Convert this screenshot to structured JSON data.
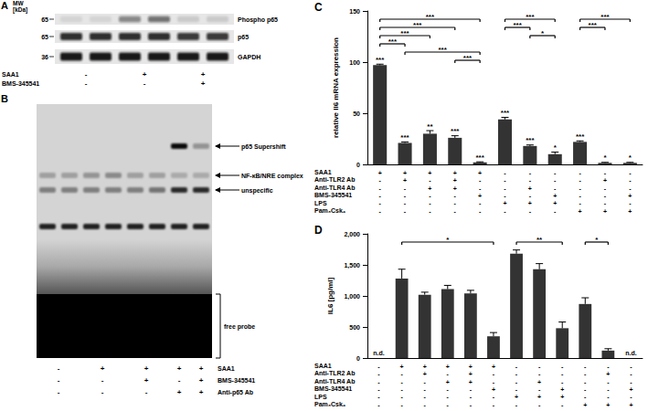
{
  "panels": {
    "A": {
      "letter": "A",
      "mw_title": [
        "MW",
        "[kDa]"
      ],
      "blots": [
        {
          "label": "Phospho p65",
          "mw": 65,
          "intensity": [
            0.08,
            0.08,
            0.45,
            0.55,
            0.12,
            0.12
          ]
        },
        {
          "label": "p65",
          "mw": 65,
          "intensity": [
            0.85,
            0.85,
            0.85,
            0.85,
            0.8,
            0.8
          ]
        },
        {
          "label": "GAPDH",
          "mw": 36,
          "intensity": [
            0.95,
            0.95,
            0.95,
            0.95,
            0.95,
            0.95
          ]
        }
      ],
      "treatments": [
        {
          "name": "SAA1",
          "groups": [
            "-",
            "+",
            "+"
          ]
        },
        {
          "name": "BMS-345541",
          "groups": [
            "-",
            "-",
            "+"
          ]
        }
      ]
    },
    "B": {
      "letter": "B",
      "bands": [
        {
          "label": "p65 Supershift",
          "intensity": [
            0,
            0,
            0,
            0,
            0,
            0,
            0.95,
            0.3
          ]
        },
        {
          "label": "NF-κB/NRE complex",
          "intensity": [
            0.25,
            0.25,
            0.3,
            0.35,
            0.25,
            0.25,
            0.2,
            0.2
          ]
        },
        {
          "label": "unspecific",
          "intensity": [
            0.4,
            0.4,
            0.4,
            0.4,
            0.4,
            0.45,
            0.8,
            0.8
          ]
        },
        {
          "intensity": [
            0.85,
            0.85,
            0.85,
            0.85,
            0.85,
            0.85,
            0.85,
            0.85
          ]
        },
        {
          "label": "free probe",
          "intensity": [
            1,
            1,
            1,
            1,
            1,
            1,
            1,
            1
          ]
        }
      ],
      "treatments": [
        {
          "name": "SAA1",
          "groups": [
            {
              "symbol": "-",
              "lanes": 2
            },
            {
              "symbol": "+",
              "lanes": 2
            },
            {
              "symbol": "+",
              "lanes": 2
            },
            {
              "symbol": "+",
              "lanes": 1
            },
            {
              "symbol": "+",
              "lanes": 1
            }
          ]
        },
        {
          "name": "BMS-345541",
          "groups": [
            {
              "symbol": "-",
              "lanes": 2
            },
            {
              "symbol": "-",
              "lanes": 2
            },
            {
              "symbol": "+",
              "lanes": 2
            },
            {
              "symbol": "-",
              "lanes": 1
            },
            {
              "symbol": "+",
              "lanes": 1
            }
          ]
        },
        {
          "name": "Anti-p65 Ab",
          "groups": [
            {
              "symbol": "-",
              "lanes": 2
            },
            {
              "symbol": "-",
              "lanes": 2
            },
            {
              "symbol": "-",
              "lanes": 2
            },
            {
              "symbol": "+",
              "lanes": 1
            },
            {
              "symbol": "+",
              "lanes": 1
            }
          ]
        }
      ]
    }
  },
  "chart_data": [
    {
      "type": "bar",
      "panel": "C",
      "y_label": "relative Il6 mRNA expression",
      "ylim": [
        0,
        150
      ],
      "yticks": [
        0,
        50,
        100,
        150
      ],
      "grid": false,
      "color": "#333333",
      "values": [
        97,
        21,
        30,
        26,
        2,
        44,
        18,
        10,
        22,
        1.5,
        1.5
      ],
      "errors": [
        1,
        1,
        3,
        2,
        0.5,
        2,
        1,
        2,
        1,
        0.5,
        0.5
      ],
      "stars": [
        "***",
        "***",
        "**",
        "***",
        "***",
        "***",
        "***",
        "*",
        "***",
        "*",
        "*"
      ],
      "brackets": [
        {
          "from": 0,
          "to": 4,
          "label": "***"
        },
        {
          "from": 0,
          "to": 3,
          "label": "***"
        },
        {
          "from": 0,
          "to": 2,
          "label": "***"
        },
        {
          "from": 0,
          "to": 1,
          "label": "***"
        },
        {
          "from": 1,
          "to": 4,
          "label": "***"
        },
        {
          "from": 3,
          "to": 4,
          "label": "***"
        },
        {
          "from": 5,
          "to": 7,
          "label": "***"
        },
        {
          "from": 5,
          "to": 6,
          "label": "***"
        },
        {
          "from": 6,
          "to": 7,
          "label": "*"
        },
        {
          "from": 8,
          "to": 10,
          "label": "***"
        },
        {
          "from": 8,
          "to": 9,
          "label": "***"
        }
      ],
      "conditions": [
        {
          "name": "SAA1",
          "values": [
            "+",
            "+",
            "+",
            "+",
            "+",
            "-",
            "-",
            "-",
            "-",
            "-",
            "-"
          ]
        },
        {
          "name": "Anti-TLR2 Ab",
          "values": [
            "-",
            "+",
            "-",
            "+",
            "-",
            "-",
            "-",
            "-",
            "-",
            "+",
            "-"
          ]
        },
        {
          "name": "Anti-TLR4 Ab",
          "values": [
            "-",
            "-",
            "+",
            "+",
            "-",
            "-",
            "+",
            "-",
            "-",
            "-",
            "-"
          ]
        },
        {
          "name": "BMS-345541",
          "values": [
            "-",
            "-",
            "-",
            "-",
            "+",
            "-",
            "-",
            "+",
            "-",
            "-",
            "+"
          ]
        },
        {
          "name": "LPS",
          "values": [
            "-",
            "-",
            "-",
            "-",
            "-",
            "+",
            "+",
            "+",
            "-",
            "-",
            "-"
          ]
        },
        {
          "name": "Pam₃Csk₄",
          "values": [
            "-",
            "-",
            "-",
            "-",
            "-",
            "-",
            "-",
            "-",
            "+",
            "+",
            "+"
          ]
        }
      ]
    },
    {
      "type": "bar",
      "panel": "D",
      "y_label": "IL6 [pg/ml]",
      "ylim": [
        0,
        2000
      ],
      "yticks": [
        0,
        500,
        1000,
        1500,
        2000
      ],
      "grid": false,
      "color": "#333333",
      "values": [
        null,
        1280,
        1020,
        1110,
        1040,
        350,
        1680,
        1430,
        480,
        870,
        120,
        null
      ],
      "value_labels": [
        "n.d.",
        null,
        null,
        null,
        null,
        null,
        null,
        null,
        null,
        null,
        null,
        "n.d."
      ],
      "errors": [
        null,
        150,
        40,
        60,
        50,
        60,
        60,
        90,
        100,
        100,
        30,
        null
      ],
      "brackets": [
        {
          "from": 1,
          "to": 5,
          "label": "*"
        },
        {
          "from": 6,
          "to": 8,
          "label": "**"
        },
        {
          "from": 9,
          "to": 10,
          "label": "*"
        }
      ],
      "conditions": [
        {
          "name": "SAA1",
          "values": [
            "-",
            "+",
            "+",
            "+",
            "+",
            "+",
            "-",
            "-",
            "-",
            "-",
            "-",
            "-"
          ]
        },
        {
          "name": "Anti-TLR2 Ab",
          "values": [
            "-",
            "-",
            "+",
            "-",
            "+",
            "-",
            "-",
            "-",
            "-",
            "-",
            "+",
            "-"
          ]
        },
        {
          "name": "Anti-TLR4 Ab",
          "values": [
            "-",
            "-",
            "-",
            "+",
            "+",
            "-",
            "-",
            "+",
            "-",
            "-",
            "-",
            "-"
          ]
        },
        {
          "name": "BMS-345541",
          "values": [
            "-",
            "-",
            "-",
            "-",
            "-",
            "+",
            "-",
            "-",
            "+",
            "-",
            "-",
            "+"
          ]
        },
        {
          "name": "LPS",
          "values": [
            "-",
            "-",
            "-",
            "-",
            "-",
            "-",
            "+",
            "+",
            "+",
            "-",
            "-",
            "-"
          ]
        },
        {
          "name": "Pam₃Csk₄",
          "values": [
            "-",
            "-",
            "-",
            "-",
            "-",
            "-",
            "-",
            "-",
            "-",
            "+",
            "+",
            "+"
          ]
        }
      ]
    }
  ]
}
